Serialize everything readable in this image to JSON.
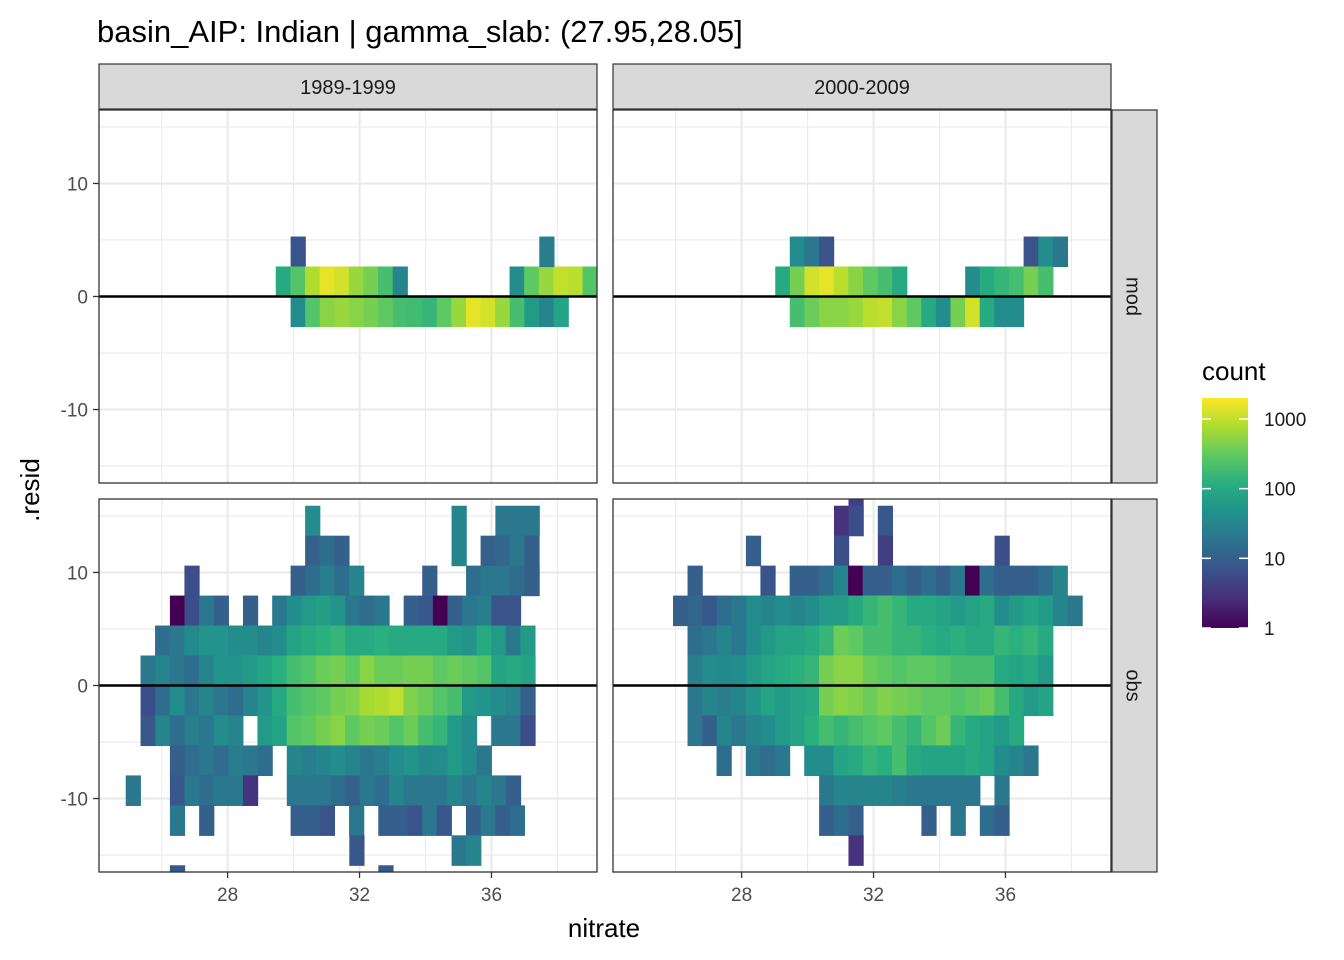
{
  "chart_data": {
    "type": "heatmap",
    "title": "basin_AIP: Indian | gamma_slab: (27.95,28.05]",
    "xlabel": "nitrate",
    "ylabel": ".resid",
    "col_facets": [
      "1989-1999",
      "2000-2009"
    ],
    "row_facets": [
      "mod",
      "obs"
    ],
    "x_ticks": [
      28,
      32,
      36
    ],
    "y_ticks": [
      10,
      0,
      -10
    ],
    "xlim": [
      24.1,
      39.2
    ],
    "ylim": [
      -16.5,
      16.5
    ],
    "bin_width_x": 0.443,
    "bin_width_y": 2.65,
    "reference_line_y": 0,
    "legend": {
      "title": "count",
      "scale": "log10",
      "breaks": [
        1,
        10,
        100,
        1000
      ],
      "labels": [
        "1",
        "10",
        "100",
        "1000"
      ],
      "max": 2000,
      "position": "right",
      "palette": [
        "#440154",
        "#472d7b",
        "#3b528b",
        "#2c728e",
        "#21918c",
        "#28ae80",
        "#5ec962",
        "#addc30",
        "#fde725"
      ]
    },
    "panels": [
      {
        "col": "1989-1999",
        "row": "mod",
        "rows": [
          {
            "yc": 3.98,
            "x0": 29.91,
            "v": [
              7
            ]
          },
          {
            "yc": 1.33,
            "x0": 29.46,
            "v": [
              100,
              250,
              800,
              1500,
              1200,
              600,
              400,
              200,
              30,
              0,
              0,
              0,
              0,
              0,
              0,
              0,
              40,
              300,
              600,
              1000,
              900,
              250,
              120
            ]
          },
          {
            "yc": -1.33,
            "x0": 29.91,
            "v": [
              40,
              250,
              500,
              600,
              500,
              400,
              300,
              200,
              180,
              150,
              300,
              600,
              1500,
              1200,
              600,
              200,
              60,
              30,
              80
            ]
          },
          {
            "yc": 3.98,
            "x0": 37.45,
            "v": [
              25
            ]
          }
        ]
      },
      {
        "col": "2000-2009",
        "row": "mod",
        "rows": [
          {
            "yc": 3.98,
            "x0": 29.46,
            "v": [
              40,
              20,
              7
            ]
          },
          {
            "yc": 3.98,
            "x0": 36.55,
            "v": [
              7,
              40,
              20
            ]
          },
          {
            "yc": 1.33,
            "x0": 29.02,
            "v": [
              100,
              400,
              1200,
              1500,
              900,
              500,
              300,
              200,
              100,
              0,
              0,
              0,
              0,
              40,
              100,
              150,
              200,
              400,
              200
            ]
          },
          {
            "yc": -1.33,
            "x0": 29.46,
            "v": [
              200,
              350,
              500,
              500,
              600,
              900,
              1000,
              500,
              300,
              100,
              40,
              400,
              1200,
              100,
              40,
              40
            ]
          }
        ]
      },
      {
        "col": "1989-1999",
        "row": "obs",
        "rows": [
          {
            "yc": 14.58,
            "x0": 30.35,
            "v": [
              40
            ]
          },
          {
            "yc": 14.58,
            "x0": 34.79,
            "v": [
              30,
              0,
              0,
              20,
              20,
              20
            ]
          },
          {
            "yc": 11.93,
            "x0": 30.35,
            "v": [
              10,
              15,
              10
            ]
          },
          {
            "yc": 11.93,
            "x0": 34.79,
            "v": [
              30
            ]
          },
          {
            "yc": 11.93,
            "x0": 35.67,
            "v": [
              10,
              12,
              20,
              10
            ]
          },
          {
            "yc": 9.28,
            "x0": 26.69,
            "v": [
              6
            ]
          },
          {
            "yc": 9.28,
            "x0": 29.91,
            "v": [
              10,
              15,
              25,
              15,
              30
            ]
          },
          {
            "yc": 9.28,
            "x0": 33.9,
            "v": [
              10
            ]
          },
          {
            "yc": 9.28,
            "x0": 35.23,
            "v": [
              15,
              20,
              20,
              15,
              10
            ]
          },
          {
            "yc": 6.63,
            "x0": 26.25,
            "v": [
              1,
              6,
              20,
              10,
              0,
              10,
              0,
              20,
              40,
              60,
              70,
              50,
              20,
              15,
              20,
              0,
              10,
              8,
              1,
              10,
              20,
              25,
              7,
              7
            ]
          },
          {
            "yc": 3.98,
            "x0": 25.8,
            "v": [
              15,
              20,
              35,
              50,
              50,
              40,
              40,
              30,
              40,
              80,
              100,
              120,
              150,
              100,
              100,
              120,
              100,
              100,
              100,
              100,
              60,
              50,
              100,
              60,
              20,
              60
            ]
          },
          {
            "yc": 1.33,
            "x0": 25.36,
            "v": [
              20,
              30,
              20,
              15,
              30,
              50,
              50,
              60,
              80,
              120,
              200,
              250,
              350,
              400,
              300,
              500,
              350,
              350,
              400,
              400,
              300,
              350,
              300,
              250,
              80,
              100,
              80
            ]
          },
          {
            "yc": -1.33,
            "x0": 25.36,
            "v": [
              6,
              15,
              40,
              20,
              30,
              20,
              15,
              30,
              50,
              100,
              200,
              250,
              300,
              400,
              450,
              700,
              800,
              1000,
              450,
              350,
              250,
              200,
              60,
              50,
              40,
              30,
              10
            ]
          },
          {
            "yc": -3.98,
            "x0": 25.36,
            "v": [
              8,
              30,
              15,
              25,
              20,
              40,
              30,
              0,
              60,
              80,
              250,
              300,
              400,
              500,
              300,
              400,
              350,
              250,
              350,
              200,
              150,
              60,
              40,
              0,
              20,
              20,
              6
            ]
          },
          {
            "yc": -6.63,
            "x0": 26.25,
            "v": [
              10,
              15,
              20,
              15,
              25,
              20,
              15,
              0,
              30,
              25,
              30,
              40,
              30,
              20,
              25,
              40,
              50,
              35,
              40,
              60,
              40,
              20
            ]
          },
          {
            "yc": -9.28,
            "x0": 24.91,
            "v": [
              20
            ]
          },
          {
            "yc": -9.28,
            "x0": 26.25,
            "v": [
              8,
              20,
              15,
              20,
              20,
              3,
              0,
              0,
              20,
              20,
              20,
              15,
              10,
              20,
              15,
              30,
              20,
              20,
              20,
              30,
              20,
              30,
              20,
              10
            ]
          },
          {
            "yc": -11.93,
            "x0": 26.25,
            "v": [
              20,
              0,
              10
            ]
          },
          {
            "yc": -11.93,
            "x0": 29.91,
            "v": [
              10,
              10,
              7,
              0,
              20,
              0,
              10,
              10,
              7,
              20,
              8,
              0,
              10,
              20,
              10,
              15
            ]
          },
          {
            "yc": -14.58,
            "x0": 31.69,
            "v": [
              8
            ]
          },
          {
            "yc": -14.58,
            "x0": 34.79,
            "v": [
              20,
              30
            ]
          },
          {
            "yc": -17.23,
            "x0": 26.25,
            "v": [
              8
            ]
          },
          {
            "yc": -17.23,
            "x0": 32.57,
            "v": [
              8
            ]
          }
        ]
      },
      {
        "col": "2000-2009",
        "row": "obs",
        "rows": [
          {
            "yc": 17.23,
            "x0": 31.24,
            "v": [
              4
            ]
          },
          {
            "yc": 14.58,
            "x0": 30.8,
            "v": [
              3,
              6,
              0,
              8
            ]
          },
          {
            "yc": 11.93,
            "x0": 28.13,
            "v": [
              10
            ]
          },
          {
            "yc": 11.93,
            "x0": 30.8,
            "v": [
              6
            ]
          },
          {
            "yc": 11.93,
            "x0": 32.13,
            "v": [
              4
            ]
          },
          {
            "yc": 11.93,
            "x0": 35.67,
            "v": [
              6
            ]
          },
          {
            "yc": 9.28,
            "x0": 26.36,
            "v": [
              10
            ]
          },
          {
            "yc": 9.28,
            "x0": 28.57,
            "v": [
              7,
              0,
              10,
              10,
              15,
              30,
              1,
              10,
              10,
              15,
              10,
              15,
              10,
              20,
              1,
              15,
              10,
              10,
              10,
              15,
              30
            ]
          },
          {
            "yc": 6.63,
            "x0": 25.92,
            "v": [
              10,
              12,
              8,
              15,
              20,
              40,
              30,
              40,
              30,
              40,
              60,
              60,
              100,
              150,
              200,
              150,
              100,
              100,
              80,
              60,
              80,
              100,
              40,
              60,
              80,
              60,
              30,
              20
            ]
          },
          {
            "yc": 3.98,
            "x0": 26.36,
            "v": [
              15,
              20,
              30,
              20,
              40,
              60,
              80,
              80,
              100,
              150,
              350,
              300,
              200,
              200,
              150,
              150,
              120,
              100,
              120,
              100,
              100,
              150,
              120,
              150,
              100
            ]
          },
          {
            "yc": 1.33,
            "x0": 26.36,
            "v": [
              25,
              40,
              35,
              40,
              60,
              80,
              100,
              120,
              150,
              400,
              500,
              500,
              350,
              300,
              250,
              300,
              300,
              250,
              200,
              200,
              200,
              100,
              80,
              100,
              60
            ]
          },
          {
            "yc": -1.33,
            "x0": 26.36,
            "v": [
              20,
              30,
              25,
              30,
              50,
              80,
              60,
              80,
              100,
              400,
              500,
              450,
              350,
              450,
              400,
              350,
              300,
              300,
              250,
              300,
              350,
              200,
              100,
              60,
              80
            ]
          },
          {
            "yc": -3.98,
            "x0": 26.36,
            "v": [
              20,
              10,
              30,
              20,
              30,
              40,
              60,
              80,
              120,
              200,
              150,
              200,
              250,
              300,
              200,
              150,
              250,
              350,
              150,
              100,
              80,
              60,
              100
            ]
          },
          {
            "yc": -6.63,
            "x0": 27.24,
            "v": [
              15,
              0,
              20,
              15,
              20,
              0,
              40,
              40,
              80,
              100,
              150,
              120,
              200,
              100,
              80,
              80,
              80,
              100,
              80,
              40,
              30,
              20
            ]
          },
          {
            "yc": -9.28,
            "x0": 30.35,
            "v": [
              20,
              30,
              30,
              30,
              30,
              25,
              20,
              20,
              20,
              20,
              20,
              0,
              20
            ]
          },
          {
            "yc": -11.93,
            "x0": 30.35,
            "v": [
              10,
              15,
              10,
              0,
              0,
              0,
              0,
              10,
              0,
              20,
              0,
              15,
              10
            ]
          },
          {
            "yc": -14.58,
            "x0": 31.24,
            "v": [
              3
            ]
          }
        ]
      }
    ]
  }
}
